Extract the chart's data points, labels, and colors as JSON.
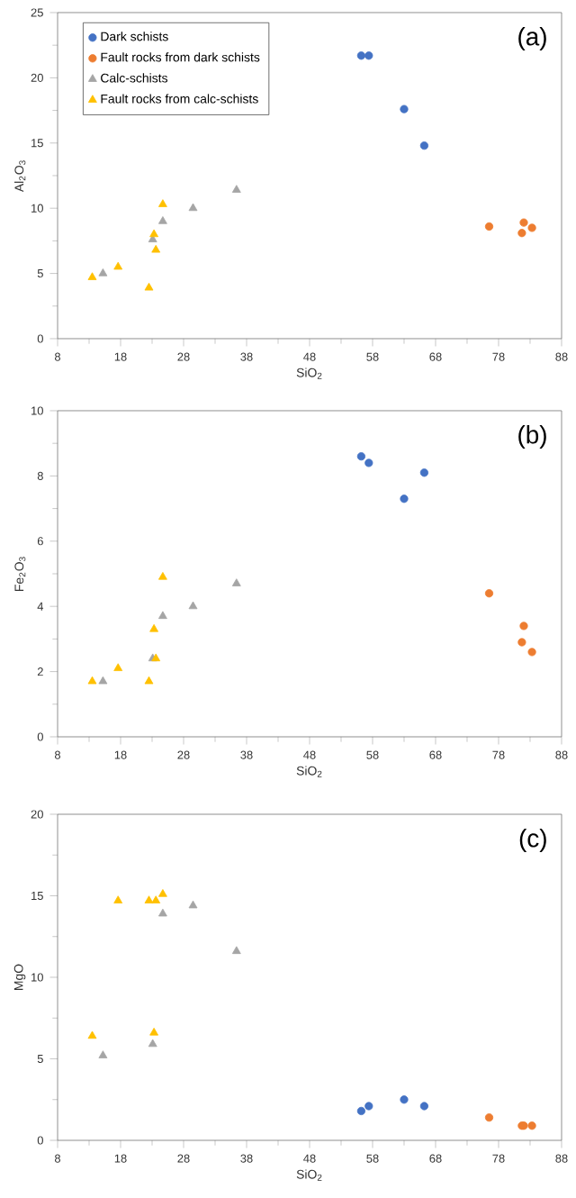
{
  "chart_data": [
    {
      "type": "scatter",
      "xlabel": "SiO$_{2}$",
      "ylabel": "Al$_{2}$O$_{3}$",
      "annotations": [
        "(a)"
      ],
      "xlim": [
        8,
        88
      ],
      "xticks": [
        8,
        18,
        28,
        38,
        48,
        58,
        68,
        78,
        88
      ],
      "ylim": [
        0,
        25
      ],
      "yticks": [
        0,
        5,
        10,
        15,
        20,
        25
      ],
      "grid": false,
      "legend": "top left",
      "series": [
        {
          "name": "Dark schists",
          "color": "#4472c4",
          "marker": "circle",
          "x": [
            56.2,
            57.4,
            63.0,
            66.2
          ],
          "values": [
            21.7,
            21.7,
            17.6,
            14.8
          ]
        },
        {
          "name": "Fault rocks from dark schists",
          "color": "#ed7d31",
          "marker": "circle",
          "x": [
            76.5,
            81.7,
            82.0,
            83.3
          ],
          "values": [
            8.6,
            8.1,
            8.9,
            8.5
          ]
        },
        {
          "name": "Calc-schists",
          "color": "#a5a5a5",
          "marker": "triangle",
          "x": [
            15.2,
            23.1,
            24.7,
            29.5,
            36.4
          ],
          "values": [
            5.0,
            7.6,
            9.0,
            10.0,
            11.4
          ]
        },
        {
          "name": "Fault rocks from calc-schists",
          "color": "#ffc000",
          "marker": "triangle",
          "x": [
            13.5,
            17.6,
            22.5,
            23.3,
            23.6,
            24.7
          ],
          "values": [
            4.7,
            5.5,
            3.9,
            8.0,
            6.8,
            10.3
          ]
        }
      ]
    },
    {
      "type": "scatter",
      "xlabel": "SiO$_{2}$",
      "ylabel": "Fe$_{2}$O$_{3}$",
      "annotations": [
        "(b)"
      ],
      "xlim": [
        8,
        88
      ],
      "xticks": [
        8,
        18,
        28,
        38,
        48,
        58,
        68,
        78,
        88
      ],
      "ylim": [
        0,
        10
      ],
      "yticks": [
        0,
        2,
        4,
        6,
        8,
        10
      ],
      "grid": false,
      "series": [
        {
          "color": "#4472c4",
          "marker": "circle",
          "x": [
            56.2,
            57.4,
            63.0,
            66.2
          ],
          "values": [
            8.6,
            8.4,
            7.3,
            8.1
          ]
        },
        {
          "color": "#ed7d31",
          "marker": "circle",
          "x": [
            76.5,
            81.7,
            82.0,
            83.3
          ],
          "values": [
            4.4,
            2.9,
            3.4,
            2.6
          ]
        },
        {
          "color": "#a5a5a5",
          "marker": "triangle",
          "x": [
            15.2,
            23.1,
            24.7,
            29.5,
            36.4
          ],
          "values": [
            1.7,
            2.4,
            3.7,
            4.0,
            4.7
          ]
        },
        {
          "color": "#ffc000",
          "marker": "triangle",
          "x": [
            13.5,
            17.6,
            22.5,
            23.3,
            23.6,
            24.7
          ],
          "values": [
            1.7,
            2.1,
            1.7,
            3.3,
            2.4,
            4.9
          ]
        }
      ]
    },
    {
      "type": "scatter",
      "xlabel": "SiO$_{2}$",
      "ylabel": "MgO",
      "annotations": [
        "(c)"
      ],
      "xlim": [
        8,
        88
      ],
      "xticks": [
        8,
        18,
        28,
        38,
        48,
        58,
        68,
        78,
        88
      ],
      "ylim": [
        0,
        20
      ],
      "yticks": [
        0,
        5,
        10,
        15,
        20
      ],
      "grid": false,
      "series": [
        {
          "color": "#4472c4",
          "marker": "circle",
          "x": [
            56.2,
            57.4,
            63.0,
            66.2
          ],
          "values": [
            1.8,
            2.1,
            2.5,
            2.1
          ]
        },
        {
          "color": "#ed7d31",
          "marker": "circle",
          "x": [
            76.5,
            81.7,
            82.0,
            83.3
          ],
          "values": [
            1.4,
            0.9,
            0.9,
            0.9
          ]
        },
        {
          "color": "#a5a5a5",
          "marker": "triangle",
          "x": [
            15.2,
            23.1,
            24.7,
            29.5,
            36.4
          ],
          "values": [
            5.2,
            5.9,
            13.9,
            14.4,
            11.6
          ]
        },
        {
          "color": "#ffc000",
          "marker": "triangle",
          "x": [
            13.5,
            17.6,
            22.5,
            23.3,
            23.6,
            24.7
          ],
          "values": [
            6.4,
            14.7,
            14.7,
            6.6,
            14.7,
            15.1
          ]
        }
      ]
    }
  ]
}
